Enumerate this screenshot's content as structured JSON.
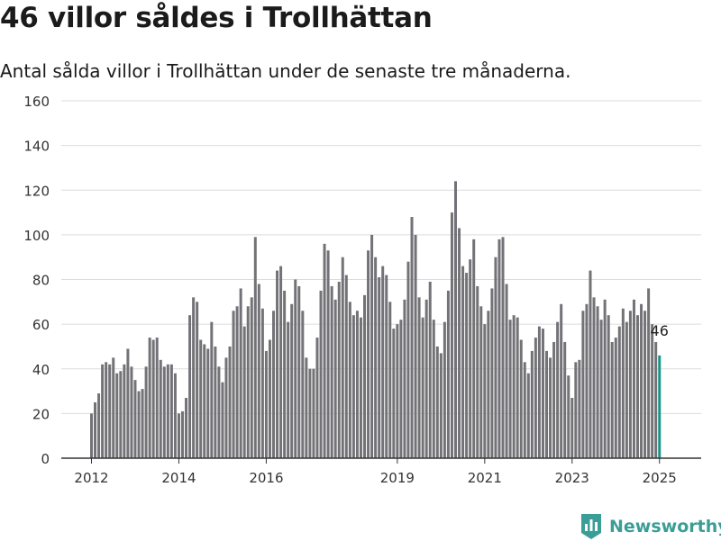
{
  "title": "46 villor såldes i Trollhättan",
  "subtitle": "Antal sålda villor i Trollhättan under de senaste tre månaderna.",
  "brand": "Newsworthy",
  "colors": {
    "bar": "#737277",
    "highlight": "#1e9488",
    "grid": "#dcdcdc",
    "axis": "#333333",
    "brand": "#3a9e96"
  },
  "chart_data": {
    "type": "bar",
    "title": "46 villor såldes i Trollhättan",
    "subtitle": "Antal sålda villor i Trollhättan under de senaste tre månaderna.",
    "xlabel": "",
    "ylabel": "",
    "ylim": [
      0,
      160
    ],
    "yticks": [
      0,
      20,
      40,
      60,
      80,
      100,
      120,
      140,
      160
    ],
    "xticks": [
      "2012",
      "2014",
      "2016",
      "2019",
      "2021",
      "2023",
      "2025"
    ],
    "grid": true,
    "legend": "none",
    "highlight_label": "46",
    "values": [
      20,
      25,
      29,
      42,
      43,
      42,
      45,
      38,
      39,
      42,
      49,
      41,
      35,
      30,
      31,
      41,
      54,
      53,
      54,
      44,
      41,
      42,
      42,
      38,
      20,
      21,
      27,
      64,
      72,
      70,
      53,
      51,
      49,
      61,
      50,
      41,
      34,
      45,
      50,
      66,
      68,
      76,
      59,
      68,
      72,
      99,
      78,
      67,
      48,
      53,
      66,
      84,
      86,
      75,
      61,
      69,
      80,
      77,
      66,
      45,
      40,
      40,
      54,
      75,
      96,
      93,
      77,
      71,
      79,
      90,
      82,
      70,
      64,
      66,
      63,
      73,
      93,
      100,
      90,
      81,
      86,
      82,
      70,
      58,
      60,
      62,
      71,
      88,
      108,
      100,
      72,
      63,
      71,
      79,
      62,
      50,
      47,
      61,
      75,
      110,
      124,
      103,
      86,
      83,
      89,
      98,
      77,
      68,
      60,
      66,
      76,
      90,
      98,
      99,
      78,
      62,
      64,
      63,
      53,
      43,
      38,
      48,
      54,
      59,
      58,
      48,
      45,
      52,
      61,
      69,
      52,
      37,
      27,
      43,
      44,
      66,
      69,
      84,
      72,
      68,
      62,
      71,
      64,
      52,
      54,
      59,
      67,
      61,
      66,
      71,
      64,
      69,
      66,
      76,
      60,
      52,
      46
    ]
  }
}
